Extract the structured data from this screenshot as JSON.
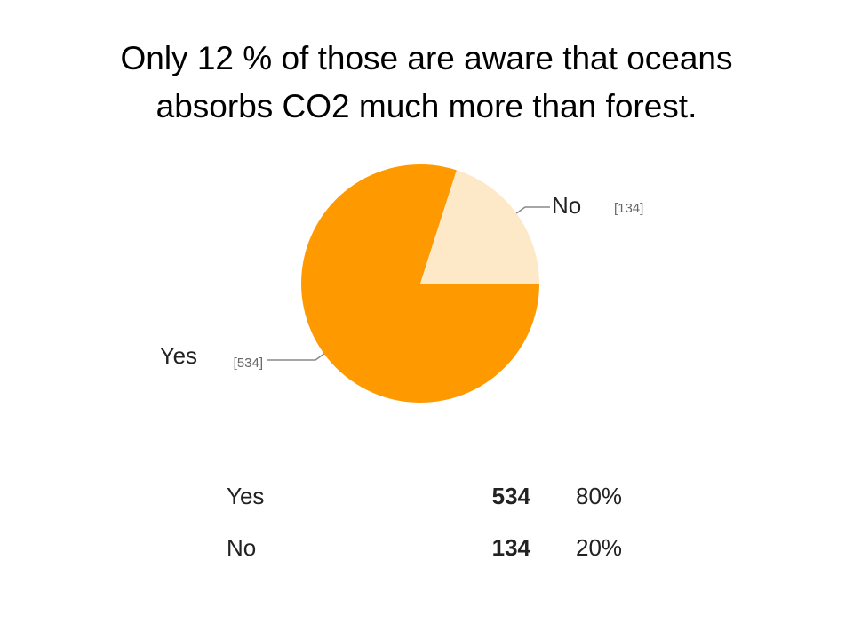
{
  "chart_data": {
    "type": "pie",
    "title": [
      "Only 12 % of those are aware that oceans",
      "absorbs CO2 much more than forest."
    ],
    "categories": [
      "Yes",
      "No"
    ],
    "values": [
      534,
      134
    ],
    "value_labels": [
      "[534]",
      "[134]"
    ],
    "colors": [
      "#ff9900",
      "#fde8c8"
    ]
  },
  "table": {
    "rows": [
      [
        "Yes",
        "534",
        "80%"
      ],
      [
        "No",
        "134",
        "20%"
      ]
    ]
  }
}
